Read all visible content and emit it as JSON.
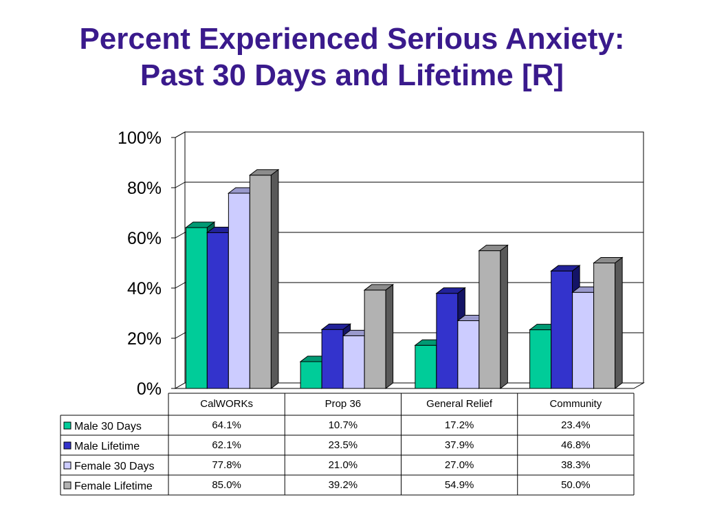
{
  "title_lines": [
    "Percent Experienced Serious Anxiety:",
    "Past 30 Days and Lifetime [R]"
  ],
  "chart_data": {
    "type": "bar",
    "title": "Percent Experienced Serious Anxiety: Past 30 Days and Lifetime [R]",
    "categories": [
      "CalWORKs",
      "Prop 36",
      "General Relief",
      "Community"
    ],
    "series": [
      {
        "name": "Male 30 Days",
        "values": [
          64.1,
          10.7,
          17.2,
          23.4
        ],
        "labels": [
          "64.1%",
          "10.7%",
          "17.2%",
          "23.4%"
        ],
        "color": "#00cc99",
        "top_color": "#009973",
        "side_color": "#006650"
      },
      {
        "name": "Male Lifetime",
        "values": [
          62.1,
          23.5,
          37.9,
          46.8
        ],
        "labels": [
          "62.1%",
          "23.5%",
          "37.9%",
          "46.8%"
        ],
        "color": "#3333cc",
        "top_color": "#222299",
        "side_color": "#141466"
      },
      {
        "name": "Female 30 Days",
        "values": [
          77.8,
          21.0,
          27.0,
          38.3
        ],
        "labels": [
          "77.8%",
          "21.0%",
          "27.0%",
          "38.3%"
        ],
        "color": "#ccccff",
        "top_color": "#9999cc",
        "side_color": "#7777aa"
      },
      {
        "name": "Female Lifetime",
        "values": [
          85.0,
          39.2,
          54.9,
          50.0
        ],
        "labels": [
          "85.0%",
          "39.2%",
          "54.9%",
          "50.0%"
        ],
        "color": "#b2b2b2",
        "top_color": "#8c8c8c",
        "side_color": "#595959"
      }
    ],
    "ylim": [
      0,
      100
    ],
    "yticks": [
      0,
      20,
      40,
      60,
      80,
      100
    ],
    "ytick_labels": [
      "0%",
      "20%",
      "40%",
      "60%",
      "80%",
      "100%"
    ],
    "grid": true,
    "legend": "data-table"
  }
}
